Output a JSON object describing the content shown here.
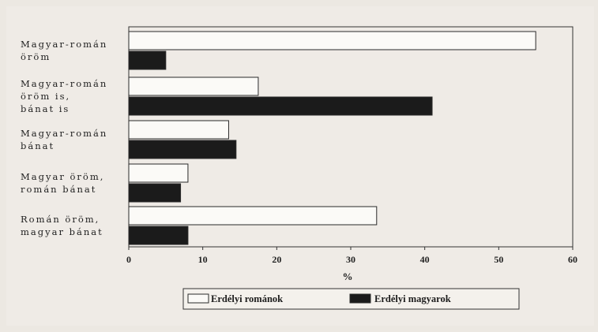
{
  "chart_data": {
    "type": "bar",
    "orientation": "horizontal",
    "categories": [
      [
        "Magyar-román",
        "öröm"
      ],
      [
        "Magyar-román",
        "öröm is,",
        "bánat is"
      ],
      [
        "Magyar-román",
        "bánat"
      ],
      [
        "Magyar öröm,",
        "román bánat"
      ],
      [
        "Román öröm,",
        "magyar bánat"
      ]
    ],
    "series": [
      {
        "name": "Erdélyi románok",
        "values": [
          55,
          17.5,
          13.5,
          8,
          33.5
        ],
        "color": "#fbfaf7"
      },
      {
        "name": "Erdélyi magyarok",
        "values": [
          5,
          41,
          14.5,
          7,
          8
        ],
        "color": "#1b1b1b"
      }
    ],
    "xlabel": "%",
    "xlim": [
      0,
      60
    ],
    "xticks": [
      0,
      10,
      20,
      30,
      40,
      50,
      60
    ],
    "grid": false,
    "legend": "bottom-center"
  }
}
